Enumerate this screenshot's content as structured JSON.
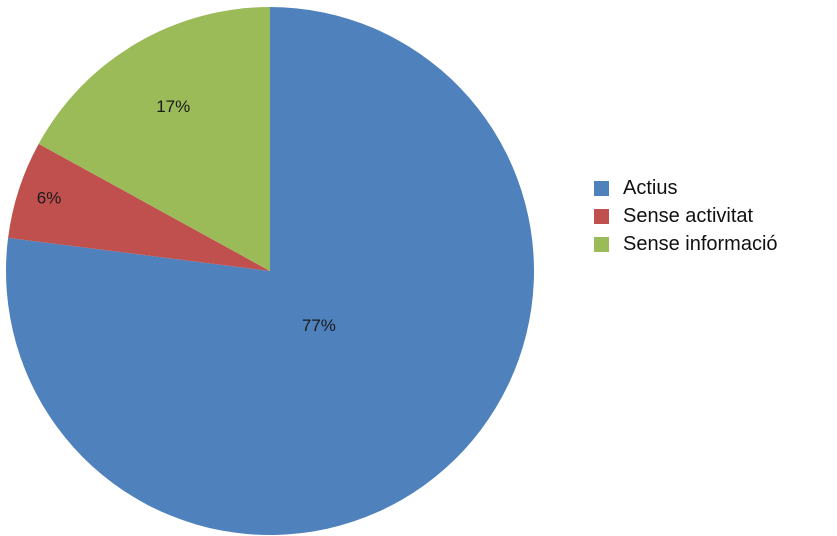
{
  "chart_data": {
    "type": "pie",
    "title": "",
    "categories": [
      "Actius",
      "Sense activitat",
      "Sense informació"
    ],
    "values": [
      77,
      6,
      17
    ],
    "value_labels": [
      "77%",
      "6%",
      "17%"
    ],
    "colors": [
      "#4f81bd",
      "#c0504d",
      "#9bbb59"
    ],
    "start_angle_deg": 0,
    "direction": "clockwise",
    "legend_position": "right"
  }
}
